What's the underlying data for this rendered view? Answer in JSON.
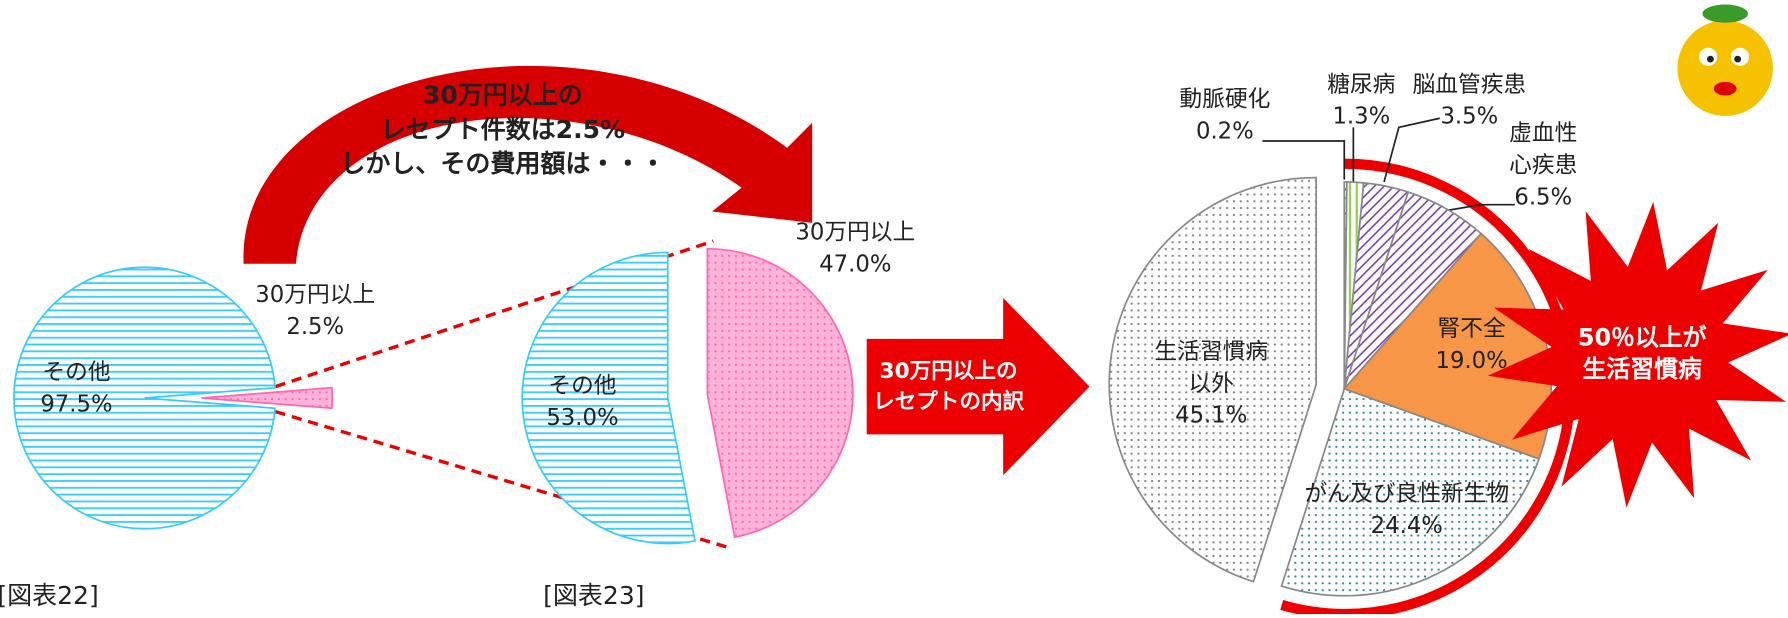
{
  "chart_data": [
    {
      "type": "pie",
      "categories": [
        "その他",
        "30万円以上"
      ],
      "values": [
        97.5,
        2.5
      ],
      "value_labels": [
        "97.5%",
        "2.5%"
      ],
      "colors": [
        "#33ccff",
        "#ff66b3"
      ],
      "fill_styles": [
        "hlines",
        "dots"
      ],
      "caption": "[図表22]"
    },
    {
      "type": "pie",
      "categories": [
        "その他",
        "30万円以上"
      ],
      "values": [
        53.0,
        47.0
      ],
      "value_labels": [
        "53.0%",
        "47.0%"
      ],
      "colors": [
        "#33ccff",
        "#ff66b3"
      ],
      "fill_styles": [
        "hlines",
        "dots"
      ],
      "caption": "[図表23]"
    },
    {
      "type": "pie",
      "categories": [
        "動脈硬化",
        "糖尿病",
        "脳血管疾患",
        [
          "虚血性",
          "心疾患"
        ],
        "腎不全",
        "がん及び良性新生物",
        [
          "生活習慣病",
          "以外"
        ]
      ],
      "values": [
        0.2,
        1.3,
        3.5,
        6.5,
        19.0,
        24.4,
        45.1
      ],
      "value_labels": [
        "0.2%",
        "1.3%",
        "3.5%",
        "6.5%",
        "19.0%",
        "24.4%",
        "45.1%"
      ],
      "colors": [
        "#ff0000",
        "#92d050",
        "#7030a0",
        "#7030a0",
        "#f79646",
        "#31859c",
        "#808080"
      ],
      "fill_styles": [
        "dash",
        "vlines",
        "diag",
        "diag",
        "solid",
        "dots",
        "dots"
      ]
    }
  ],
  "annotations": {
    "curved_arrow_text": [
      "30万円以上の",
      "レセプト件数は2.5%",
      "しかし、その費用額は・・・"
    ],
    "arrow_text": [
      "30万円以上の",
      "レセプトの内訳"
    ],
    "burst_text": [
      "50％以上が",
      "生活習慣病"
    ]
  }
}
